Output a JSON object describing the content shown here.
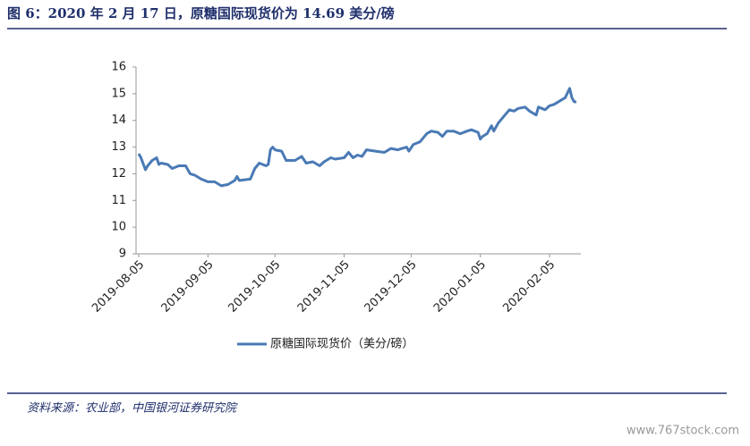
{
  "header": {
    "title": "图 6：2020 年 2 月 17 日，原糖国际现货价为 14.69 美分/磅"
  },
  "chart_data": {
    "type": "line",
    "x": [
      "2019-08-05",
      "2019-08-06",
      "2019-08-08",
      "2019-08-09",
      "2019-08-11",
      "2019-08-13",
      "2019-08-14",
      "2019-08-15",
      "2019-08-18",
      "2019-08-20",
      "2019-08-23",
      "2019-08-26",
      "2019-08-28",
      "2019-08-30",
      "2019-09-02",
      "2019-09-05",
      "2019-09-08",
      "2019-09-11",
      "2019-09-14",
      "2019-09-17",
      "2019-09-18",
      "2019-09-19",
      "2019-09-24",
      "2019-09-26",
      "2019-09-28",
      "2019-10-01",
      "2019-10-02",
      "2019-10-03",
      "2019-10-04",
      "2019-10-05",
      "2019-10-08",
      "2019-10-10",
      "2019-10-14",
      "2019-10-17",
      "2019-10-19",
      "2019-10-22",
      "2019-10-25",
      "2019-10-27",
      "2019-10-30",
      "2019-11-01",
      "2019-11-05",
      "2019-11-07",
      "2019-11-09",
      "2019-11-11",
      "2019-11-13",
      "2019-11-15",
      "2019-11-19",
      "2019-11-23",
      "2019-11-26",
      "2019-11-29",
      "2019-12-03",
      "2019-12-04",
      "2019-12-06",
      "2019-12-09",
      "2019-12-12",
      "2019-12-14",
      "2019-12-17",
      "2019-12-19",
      "2019-12-21",
      "2019-12-24",
      "2019-12-27",
      "2019-12-30",
      "2020-01-01",
      "2020-01-04",
      "2020-01-05",
      "2020-01-06",
      "2020-01-08",
      "2020-01-10",
      "2020-01-11",
      "2020-01-13",
      "2020-01-15",
      "2020-01-18",
      "2020-01-20",
      "2020-01-22",
      "2020-01-25",
      "2020-01-27",
      "2020-01-30",
      "2020-01-31",
      "2020-02-03",
      "2020-02-05",
      "2020-02-07",
      "2020-02-10",
      "2020-02-12",
      "2020-02-14",
      "2020-02-15",
      "2020-02-16",
      "2020-02-17"
    ],
    "series": [
      {
        "name": "原糖国际现货价（美分/磅）",
        "color": "#4a7ab5",
        "values": [
          12.75,
          12.6,
          12.15,
          12.3,
          12.5,
          12.6,
          12.35,
          12.4,
          12.35,
          12.2,
          12.3,
          12.3,
          12.0,
          11.95,
          11.8,
          11.7,
          11.7,
          11.55,
          11.6,
          11.75,
          11.9,
          11.75,
          11.8,
          12.2,
          12.4,
          12.3,
          12.35,
          12.9,
          13.0,
          12.9,
          12.85,
          12.5,
          12.5,
          12.65,
          12.4,
          12.45,
          12.3,
          12.45,
          12.6,
          12.55,
          12.6,
          12.8,
          12.6,
          12.7,
          12.65,
          12.9,
          12.85,
          12.8,
          12.95,
          12.9,
          13.0,
          12.85,
          13.1,
          13.2,
          13.5,
          13.6,
          13.55,
          13.4,
          13.6,
          13.6,
          13.5,
          13.6,
          13.65,
          13.55,
          13.3,
          13.4,
          13.5,
          13.8,
          13.6,
          13.9,
          14.1,
          14.4,
          14.35,
          14.45,
          14.5,
          14.35,
          14.2,
          14.5,
          14.4,
          14.55,
          14.6,
          14.75,
          14.85,
          15.2,
          14.85,
          14.7,
          14.69
        ]
      }
    ],
    "xlim": [
      "2019-08-05",
      "2020-02-19"
    ],
    "xticks": [
      "2019-08-05",
      "2019-09-05",
      "2019-10-05",
      "2019-11-05",
      "2019-12-05",
      "2020-01-05",
      "2020-02-05"
    ],
    "ylim": [
      9,
      16
    ],
    "yticks": [
      9,
      10,
      11,
      12,
      13,
      14,
      15,
      16
    ],
    "legend": "bottom"
  },
  "footer": {
    "source": "资料来源：农业部，中国银河证券研究院",
    "watermark": "www.767stock.com"
  }
}
